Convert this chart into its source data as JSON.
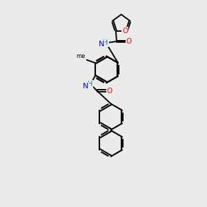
{
  "background_color": "#ebebeb",
  "bond_color": "#000000",
  "atom_colors": {
    "O": "#ff0000",
    "N": "#0000ff",
    "NH": "#008080",
    "C": "#000000"
  },
  "figsize": [
    3.0,
    3.0
  ],
  "dpi": 100,
  "xlim": [
    0,
    10
  ],
  "ylim": [
    0,
    14
  ]
}
